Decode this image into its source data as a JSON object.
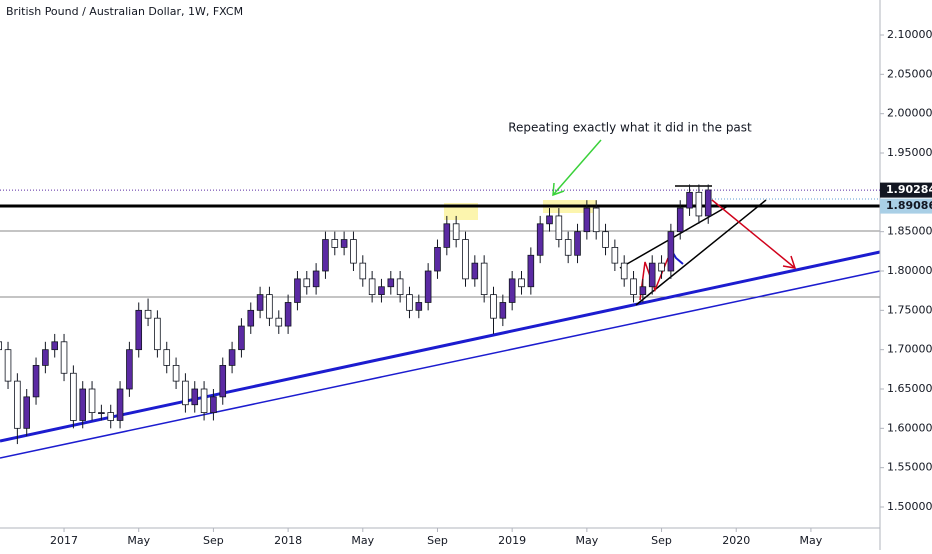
{
  "chart_data": {
    "type": "candlestick",
    "title": "British Pound / Australian Dollar, 1W, FXCM",
    "annotation": "Repeating exactly what it did in the past",
    "x": [
      -3.5,
      -3,
      -2.5,
      -2,
      -1.5,
      -1,
      -0.5,
      0,
      0.5,
      1,
      1.5,
      2,
      2.5,
      3,
      3.5,
      4,
      4.5,
      5,
      5.5,
      6,
      6.5,
      7,
      7.5,
      8,
      8.5,
      9,
      9.5,
      10,
      10.5,
      11,
      11.5,
      12,
      12.5,
      13,
      13.5,
      14,
      14.5,
      15,
      15.5,
      16,
      16.5,
      17,
      17.5,
      18,
      18.5,
      19,
      19.5,
      20,
      20.5,
      21,
      21.5,
      22,
      22.5,
      23,
      23.5,
      24,
      24.5,
      25,
      25.5,
      26,
      26.5,
      27,
      27.5,
      28,
      28.5,
      29,
      29.5,
      30,
      30.5,
      31,
      31.5,
      32,
      32.5,
      33,
      33.5,
      34,
      34.5
    ],
    "open": [
      1.71,
      1.7,
      1.66,
      1.6,
      1.64,
      1.68,
      1.7,
      1.71,
      1.67,
      1.61,
      1.65,
      1.62,
      1.62,
      1.61,
      1.65,
      1.7,
      1.75,
      1.74,
      1.7,
      1.68,
      1.66,
      1.63,
      1.65,
      1.62,
      1.64,
      1.68,
      1.7,
      1.73,
      1.75,
      1.77,
      1.74,
      1.73,
      1.76,
      1.79,
      1.78,
      1.8,
      1.84,
      1.83,
      1.84,
      1.81,
      1.79,
      1.77,
      1.78,
      1.79,
      1.77,
      1.75,
      1.76,
      1.8,
      1.83,
      1.86,
      1.84,
      1.79,
      1.81,
      1.77,
      1.74,
      1.76,
      1.79,
      1.78,
      1.82,
      1.86,
      1.87,
      1.84,
      1.82,
      1.85,
      1.88,
      1.85,
      1.83,
      1.81,
      1.79,
      1.77,
      1.78,
      1.81,
      1.8,
      1.85,
      1.88,
      1.9,
      1.87
    ],
    "high": [
      1.72,
      1.71,
      1.67,
      1.65,
      1.69,
      1.71,
      1.72,
      1.72,
      1.68,
      1.66,
      1.66,
      1.63,
      1.63,
      1.66,
      1.71,
      1.76,
      1.765,
      1.75,
      1.71,
      1.69,
      1.67,
      1.66,
      1.66,
      1.65,
      1.69,
      1.71,
      1.74,
      1.76,
      1.78,
      1.78,
      1.75,
      1.77,
      1.8,
      1.8,
      1.81,
      1.85,
      1.85,
      1.85,
      1.85,
      1.82,
      1.8,
      1.79,
      1.8,
      1.8,
      1.78,
      1.77,
      1.81,
      1.84,
      1.87,
      1.87,
      1.85,
      1.82,
      1.82,
      1.78,
      1.77,
      1.8,
      1.8,
      1.83,
      1.87,
      1.88,
      1.88,
      1.85,
      1.86,
      1.89,
      1.89,
      1.86,
      1.84,
      1.82,
      1.8,
      1.79,
      1.82,
      1.82,
      1.86,
      1.89,
      1.91,
      1.91,
      1.91
    ],
    "low": [
      1.69,
      1.65,
      1.58,
      1.59,
      1.63,
      1.67,
      1.69,
      1.66,
      1.6,
      1.6,
      1.61,
      1.61,
      1.6,
      1.6,
      1.64,
      1.69,
      1.73,
      1.69,
      1.67,
      1.65,
      1.62,
      1.62,
      1.61,
      1.61,
      1.63,
      1.67,
      1.69,
      1.72,
      1.74,
      1.73,
      1.72,
      1.72,
      1.75,
      1.77,
      1.77,
      1.79,
      1.82,
      1.82,
      1.8,
      1.78,
      1.76,
      1.76,
      1.77,
      1.76,
      1.74,
      1.74,
      1.75,
      1.79,
      1.82,
      1.83,
      1.78,
      1.78,
      1.76,
      1.72,
      1.73,
      1.75,
      1.77,
      1.77,
      1.81,
      1.85,
      1.83,
      1.81,
      1.81,
      1.84,
      1.84,
      1.82,
      1.8,
      1.78,
      1.76,
      1.76,
      1.77,
      1.79,
      1.79,
      1.84,
      1.87,
      1.86,
      1.86
    ],
    "close": [
      1.7,
      1.66,
      1.6,
      1.64,
      1.68,
      1.7,
      1.71,
      1.67,
      1.61,
      1.65,
      1.62,
      1.62,
      1.61,
      1.65,
      1.7,
      1.75,
      1.74,
      1.7,
      1.68,
      1.66,
      1.63,
      1.65,
      1.62,
      1.64,
      1.68,
      1.7,
      1.73,
      1.75,
      1.77,
      1.74,
      1.73,
      1.76,
      1.79,
      1.78,
      1.8,
      1.84,
      1.83,
      1.84,
      1.81,
      1.79,
      1.77,
      1.78,
      1.79,
      1.77,
      1.75,
      1.76,
      1.8,
      1.83,
      1.86,
      1.84,
      1.79,
      1.81,
      1.77,
      1.74,
      1.76,
      1.79,
      1.78,
      1.82,
      1.86,
      1.87,
      1.84,
      1.82,
      1.85,
      1.88,
      1.85,
      1.83,
      1.81,
      1.79,
      1.77,
      1.78,
      1.81,
      1.8,
      1.85,
      1.88,
      1.9,
      1.87,
      1.903
    ],
    "up_color": "#5b2aa3",
    "down_color": "#ffffff",
    "xlim": [
      -3.43,
      43.7
    ],
    "xticks": [
      {
        "value": 0,
        "label": "2017"
      },
      {
        "value": 4,
        "label": "May"
      },
      {
        "value": 8,
        "label": "Sep"
      },
      {
        "value": 12,
        "label": "2018"
      },
      {
        "value": 16,
        "label": "May"
      },
      {
        "value": 20,
        "label": "Sep"
      },
      {
        "value": 24,
        "label": "2019"
      },
      {
        "value": 28,
        "label": "May"
      },
      {
        "value": 32,
        "label": "Sep"
      },
      {
        "value": 36,
        "label": "2020"
      },
      {
        "value": 40,
        "label": "May"
      }
    ],
    "ylim": [
      1.4733,
      2.1445
    ],
    "yticks": [
      {
        "value": 1.5,
        "label": "1.50000"
      },
      {
        "value": 1.55,
        "label": "1.55000"
      },
      {
        "value": 1.6,
        "label": "1.60000"
      },
      {
        "value": 1.65,
        "label": "1.65000"
      },
      {
        "value": 1.7,
        "label": "1.70000"
      },
      {
        "value": 1.75,
        "label": "1.75000"
      },
      {
        "value": 1.8,
        "label": "1.80000"
      },
      {
        "value": 1.85,
        "label": "1.85000"
      },
      {
        "value": 1.9,
        "label": "1.90000"
      },
      {
        "value": 1.95,
        "label": "1.95000"
      },
      {
        "value": 2.0,
        "label": "2.00000"
      },
      {
        "value": 2.05,
        "label": "2.05000"
      },
      {
        "value": 2.1,
        "label": "2.10000"
      }
    ],
    "price_markers": [
      {
        "value": 1.90284,
        "label": "1.90284",
        "color": "#131722"
      },
      {
        "value": 1.89086,
        "label": "1.89086",
        "color": "#a9cfe6"
      }
    ]
  }
}
